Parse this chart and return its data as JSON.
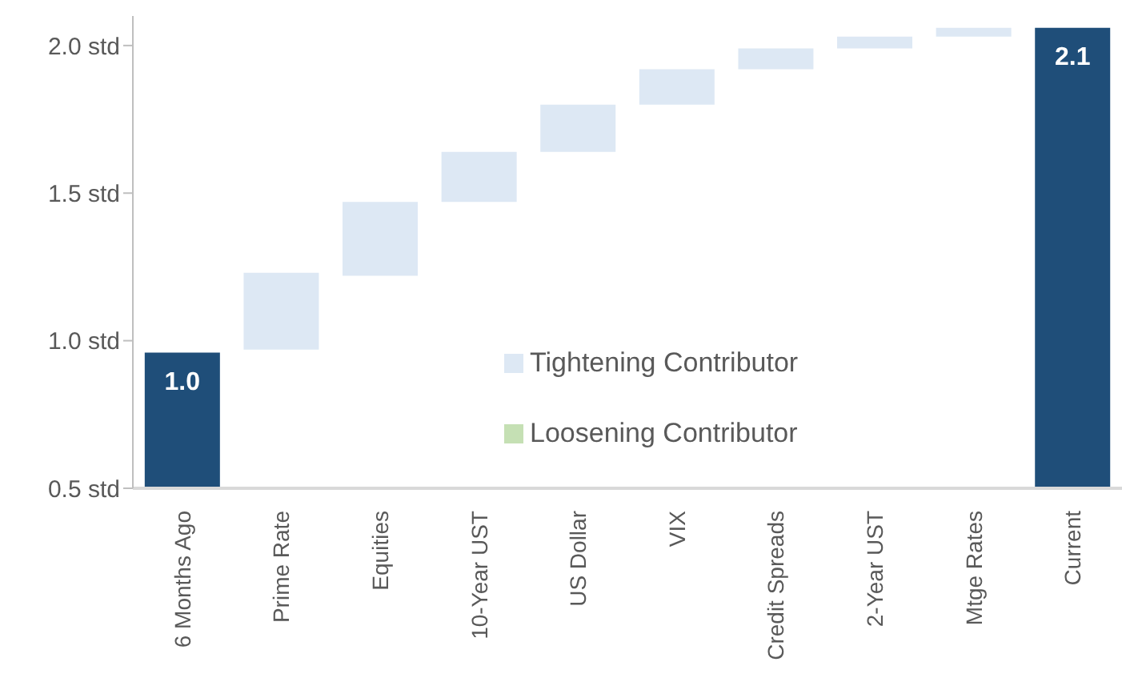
{
  "chart_data": {
    "type": "bar",
    "categories": [
      "6 Months Ago",
      "Prime Rate",
      "Equities",
      "10-Year UST",
      "US Dollar",
      "VIX",
      "Credit Spreads",
      "2-Year UST",
      "Mtge Rates",
      "Current"
    ],
    "series": [
      {
        "color": "#1f4e79",
        "values": [
          0.96,
          null,
          null,
          null,
          null,
          null,
          null,
          null,
          null,
          2.06
        ],
        "value_labels": [
          "1.0",
          null,
          null,
          null,
          null,
          null,
          null,
          null,
          null,
          "2.1"
        ]
      },
      {
        "name": "Tightening Contributor",
        "color": "#dde8f4",
        "base": [
          null,
          0.97,
          1.22,
          1.47,
          1.64,
          1.8,
          1.92,
          1.99,
          2.03,
          null
        ],
        "values": [
          null,
          0.26,
          0.25,
          0.17,
          0.16,
          0.12,
          0.07,
          0.04,
          0.03,
          null
        ]
      },
      {
        "name": "Loosening Contributor",
        "color": "#c5e0b4",
        "values": [
          null,
          null,
          null,
          null,
          null,
          null,
          null,
          null,
          null,
          null
        ]
      }
    ],
    "ylim": [
      0.5,
      2.1
    ],
    "yticks": [
      {
        "value": 0.5,
        "label": "0.5 std"
      },
      {
        "value": 1.0,
        "label": "1.0 std"
      },
      {
        "value": 1.5,
        "label": "1.5 std"
      },
      {
        "value": 2.0,
        "label": "2.0 std"
      }
    ],
    "legend": "center",
    "grid": false
  }
}
